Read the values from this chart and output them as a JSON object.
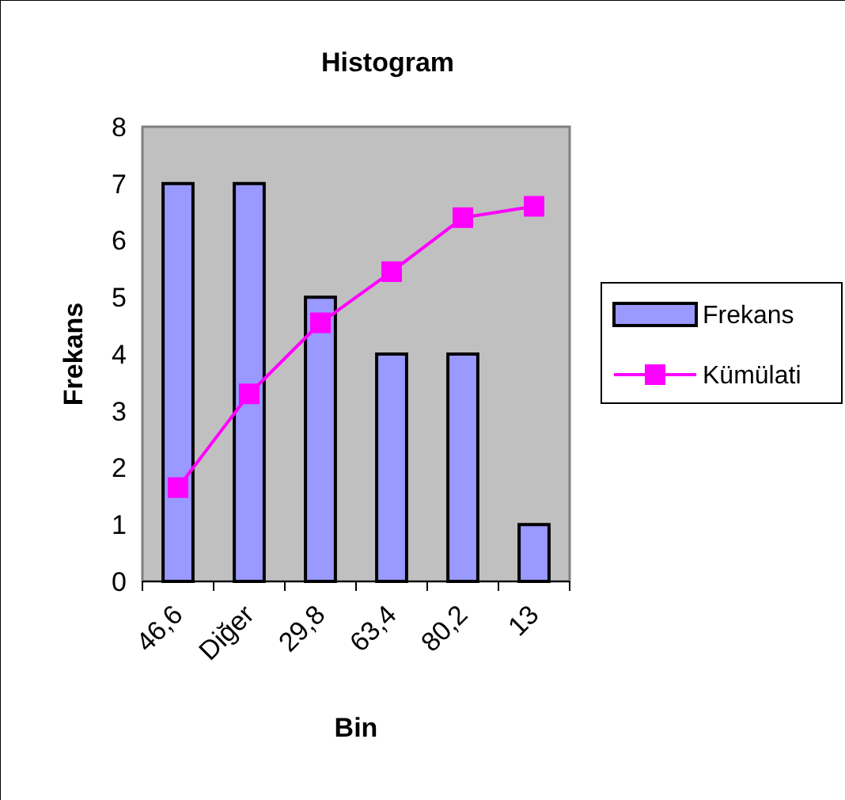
{
  "chart_data": {
    "type": "bar",
    "title": "Histogram",
    "xlabel": "Bin",
    "ylabel": "Frekans",
    "categories": [
      "46,6",
      "Diğer",
      "29,8",
      "63,4",
      "80,2",
      "13"
    ],
    "series": [
      {
        "name": "Frekans",
        "color": "#9999ff",
        "values": [
          7,
          7,
          5,
          4,
          4,
          1
        ]
      },
      {
        "name": "Kümülati",
        "type": "line",
        "color": "#ff00ff",
        "values": [
          1.65,
          3.3,
          4.55,
          5.45,
          6.4,
          6.6
        ],
        "marker": "square"
      }
    ],
    "ylim": [
      0,
      8
    ],
    "yticks": [
      0,
      1,
      2,
      3,
      4,
      5,
      6,
      7,
      8
    ],
    "grid": false,
    "legend": "right"
  }
}
